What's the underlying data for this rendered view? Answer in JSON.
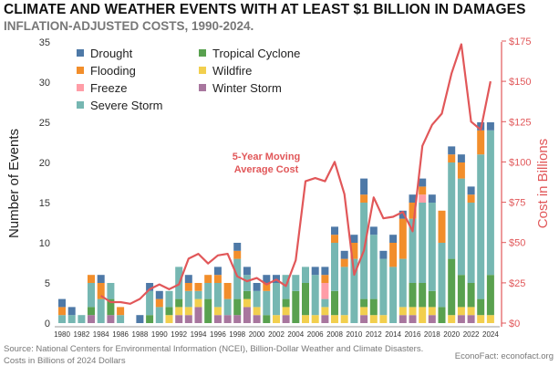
{
  "header": {
    "title": "CLIMATE AND WEATHER EVENTS WITH AT LEAST $1 BILLION IN DAMAGES",
    "subtitle": "INFLATION-ADJUSTED COSTS, 1990-2024."
  },
  "footer": {
    "source": "Source: National Centers for Environmental Information (NCEI), Billion-Dollar Weather and Climate Disasters.",
    "costs_note": "Costs in Billions of 2024 Dollars",
    "credit": "EconoFact:  econofact.org"
  },
  "chart_data": {
    "type": "bar",
    "stacked": true,
    "x": [
      1980,
      1981,
      1982,
      1983,
      1984,
      1985,
      1986,
      1987,
      1988,
      1989,
      1990,
      1991,
      1992,
      1993,
      1994,
      1995,
      1996,
      1997,
      1998,
      1999,
      2000,
      2001,
      2002,
      2003,
      2004,
      2005,
      2006,
      2007,
      2008,
      2009,
      2010,
      2011,
      2012,
      2013,
      2014,
      2015,
      2016,
      2017,
      2018,
      2019,
      2020,
      2021,
      2022,
      2023,
      2024
    ],
    "x_tick_labels": [
      "1980",
      "1982",
      "1984",
      "1986",
      "1988",
      "1990",
      "1992",
      "1994",
      "1996",
      "1998",
      "2000",
      "2002",
      "2004",
      "2006",
      "2008",
      "2010",
      "2012",
      "2014",
      "2016",
      "2018",
      "2020",
      "2022",
      "2024"
    ],
    "ylabel": "Number of Events",
    "ylim": [
      0,
      35
    ],
    "y_ticks": [
      0,
      5,
      10,
      15,
      20,
      25,
      30,
      35
    ],
    "y2label": "Cost in Billions",
    "y2lim": [
      0,
      175
    ],
    "y2_ticks": [
      "$0",
      "$25",
      "$50",
      "$75",
      "$100",
      "$125",
      "$150",
      "$175"
    ],
    "y2_tick_values": [
      0,
      25,
      50,
      75,
      100,
      125,
      150,
      175
    ],
    "grid": false,
    "legend_position": "top-left",
    "series": [
      {
        "name": "Winter Storm",
        "color": "#a8769e",
        "values": [
          0,
          0,
          0,
          1,
          0,
          1,
          0,
          0,
          0,
          0,
          0,
          0,
          1,
          1,
          2,
          0,
          1,
          1,
          1,
          2,
          1,
          0,
          0,
          1,
          0,
          0,
          0,
          1,
          0,
          0,
          0,
          1,
          0,
          0,
          0,
          1,
          1,
          0,
          1,
          0,
          0,
          1,
          1,
          0,
          0
        ]
      },
      {
        "name": "Wildfire",
        "color": "#f2cf4e",
        "values": [
          0,
          0,
          0,
          0,
          0,
          0,
          0,
          0,
          0,
          0,
          0,
          1,
          1,
          1,
          1,
          0,
          1,
          0,
          0,
          1,
          1,
          0,
          1,
          1,
          0,
          1,
          1,
          1,
          1,
          1,
          0,
          1,
          1,
          1,
          0,
          1,
          1,
          2,
          1,
          0,
          1,
          1,
          1,
          1,
          1
        ]
      },
      {
        "name": "Tropical Cyclone",
        "color": "#59a14f",
        "values": [
          0,
          0,
          0,
          1,
          0,
          2,
          0,
          0,
          0,
          1,
          0,
          1,
          1,
          0,
          0,
          3,
          0,
          0,
          2,
          1,
          0,
          1,
          0,
          1,
          4,
          4,
          0,
          0,
          3,
          0,
          0,
          1,
          2,
          0,
          0,
          0,
          3,
          3,
          2,
          2,
          7,
          4,
          3,
          2,
          5
        ]
      },
      {
        "name": "Severe Storm",
        "color": "#76b7b2",
        "values": [
          1,
          1,
          1,
          3,
          3,
          2,
          1,
          0,
          0,
          3,
          2,
          2,
          4,
          2,
          1,
          2,
          3,
          2,
          5,
          2,
          2,
          3,
          4,
          3,
          2,
          2,
          5,
          1,
          6,
          6,
          8,
          12,
          8,
          7,
          7,
          6,
          8,
          10,
          11,
          8,
          12,
          12,
          10,
          18,
          18
        ]
      },
      {
        "name": "Freeze",
        "color": "#ff9da7",
        "values": [
          0,
          0,
          0,
          0,
          0,
          0,
          0,
          0,
          0,
          0,
          0,
          0,
          0,
          0,
          0,
          0,
          0,
          0,
          0,
          0,
          0,
          0,
          0,
          0,
          0,
          0,
          0,
          2,
          0,
          0,
          0,
          0,
          0,
          0,
          0,
          0,
          0,
          1,
          0,
          0,
          0,
          0,
          0,
          0,
          0
        ]
      },
      {
        "name": "Flooding",
        "color": "#f28e2b",
        "values": [
          1,
          0,
          0,
          1,
          2,
          0,
          1,
          0,
          0,
          0,
          1,
          0,
          0,
          1,
          1,
          1,
          1,
          2,
          1,
          0,
          0,
          1,
          0,
          0,
          0,
          0,
          0,
          1,
          1,
          1,
          2,
          1,
          0,
          0,
          3,
          5,
          2,
          1,
          0,
          4,
          1,
          2,
          1,
          3,
          0
        ]
      },
      {
        "name": "Drought",
        "color": "#4e79a7",
        "values": [
          1,
          1,
          0,
          0,
          1,
          0,
          0,
          0,
          1,
          1,
          1,
          0,
          0,
          1,
          0,
          0,
          1,
          0,
          1,
          1,
          1,
          1,
          1,
          0,
          0,
          0,
          1,
          1,
          1,
          1,
          1,
          2,
          1,
          1,
          1,
          1,
          1,
          1,
          1,
          0,
          1,
          1,
          1,
          1,
          1
        ]
      }
    ],
    "cost_series": {
      "name": "5-Year Moving Average Cost",
      "color": "#e15759",
      "x": [
        1984,
        1985,
        1986,
        1987,
        1988,
        1989,
        1990,
        1991,
        1992,
        1993,
        1994,
        1995,
        1996,
        1997,
        1998,
        1999,
        2000,
        2001,
        2002,
        2003,
        2004,
        2005,
        2006,
        2007,
        2008,
        2009,
        2010,
        2011,
        2012,
        2013,
        2014,
        2015,
        2016,
        2017,
        2018,
        2019,
        2020,
        2021,
        2022,
        2023,
        2024
      ],
      "values": [
        17,
        13,
        13,
        12,
        15,
        21,
        24,
        21,
        24,
        40,
        43,
        37,
        42,
        43,
        29,
        26,
        28,
        24,
        27,
        23,
        39,
        88,
        90,
        88,
        100,
        80,
        30,
        45,
        78,
        65,
        66,
        69,
        57,
        110,
        123,
        130,
        155,
        173,
        125,
        120,
        150
      ]
    },
    "annotation": [
      "5-Year Moving",
      "Average Cost"
    ]
  }
}
